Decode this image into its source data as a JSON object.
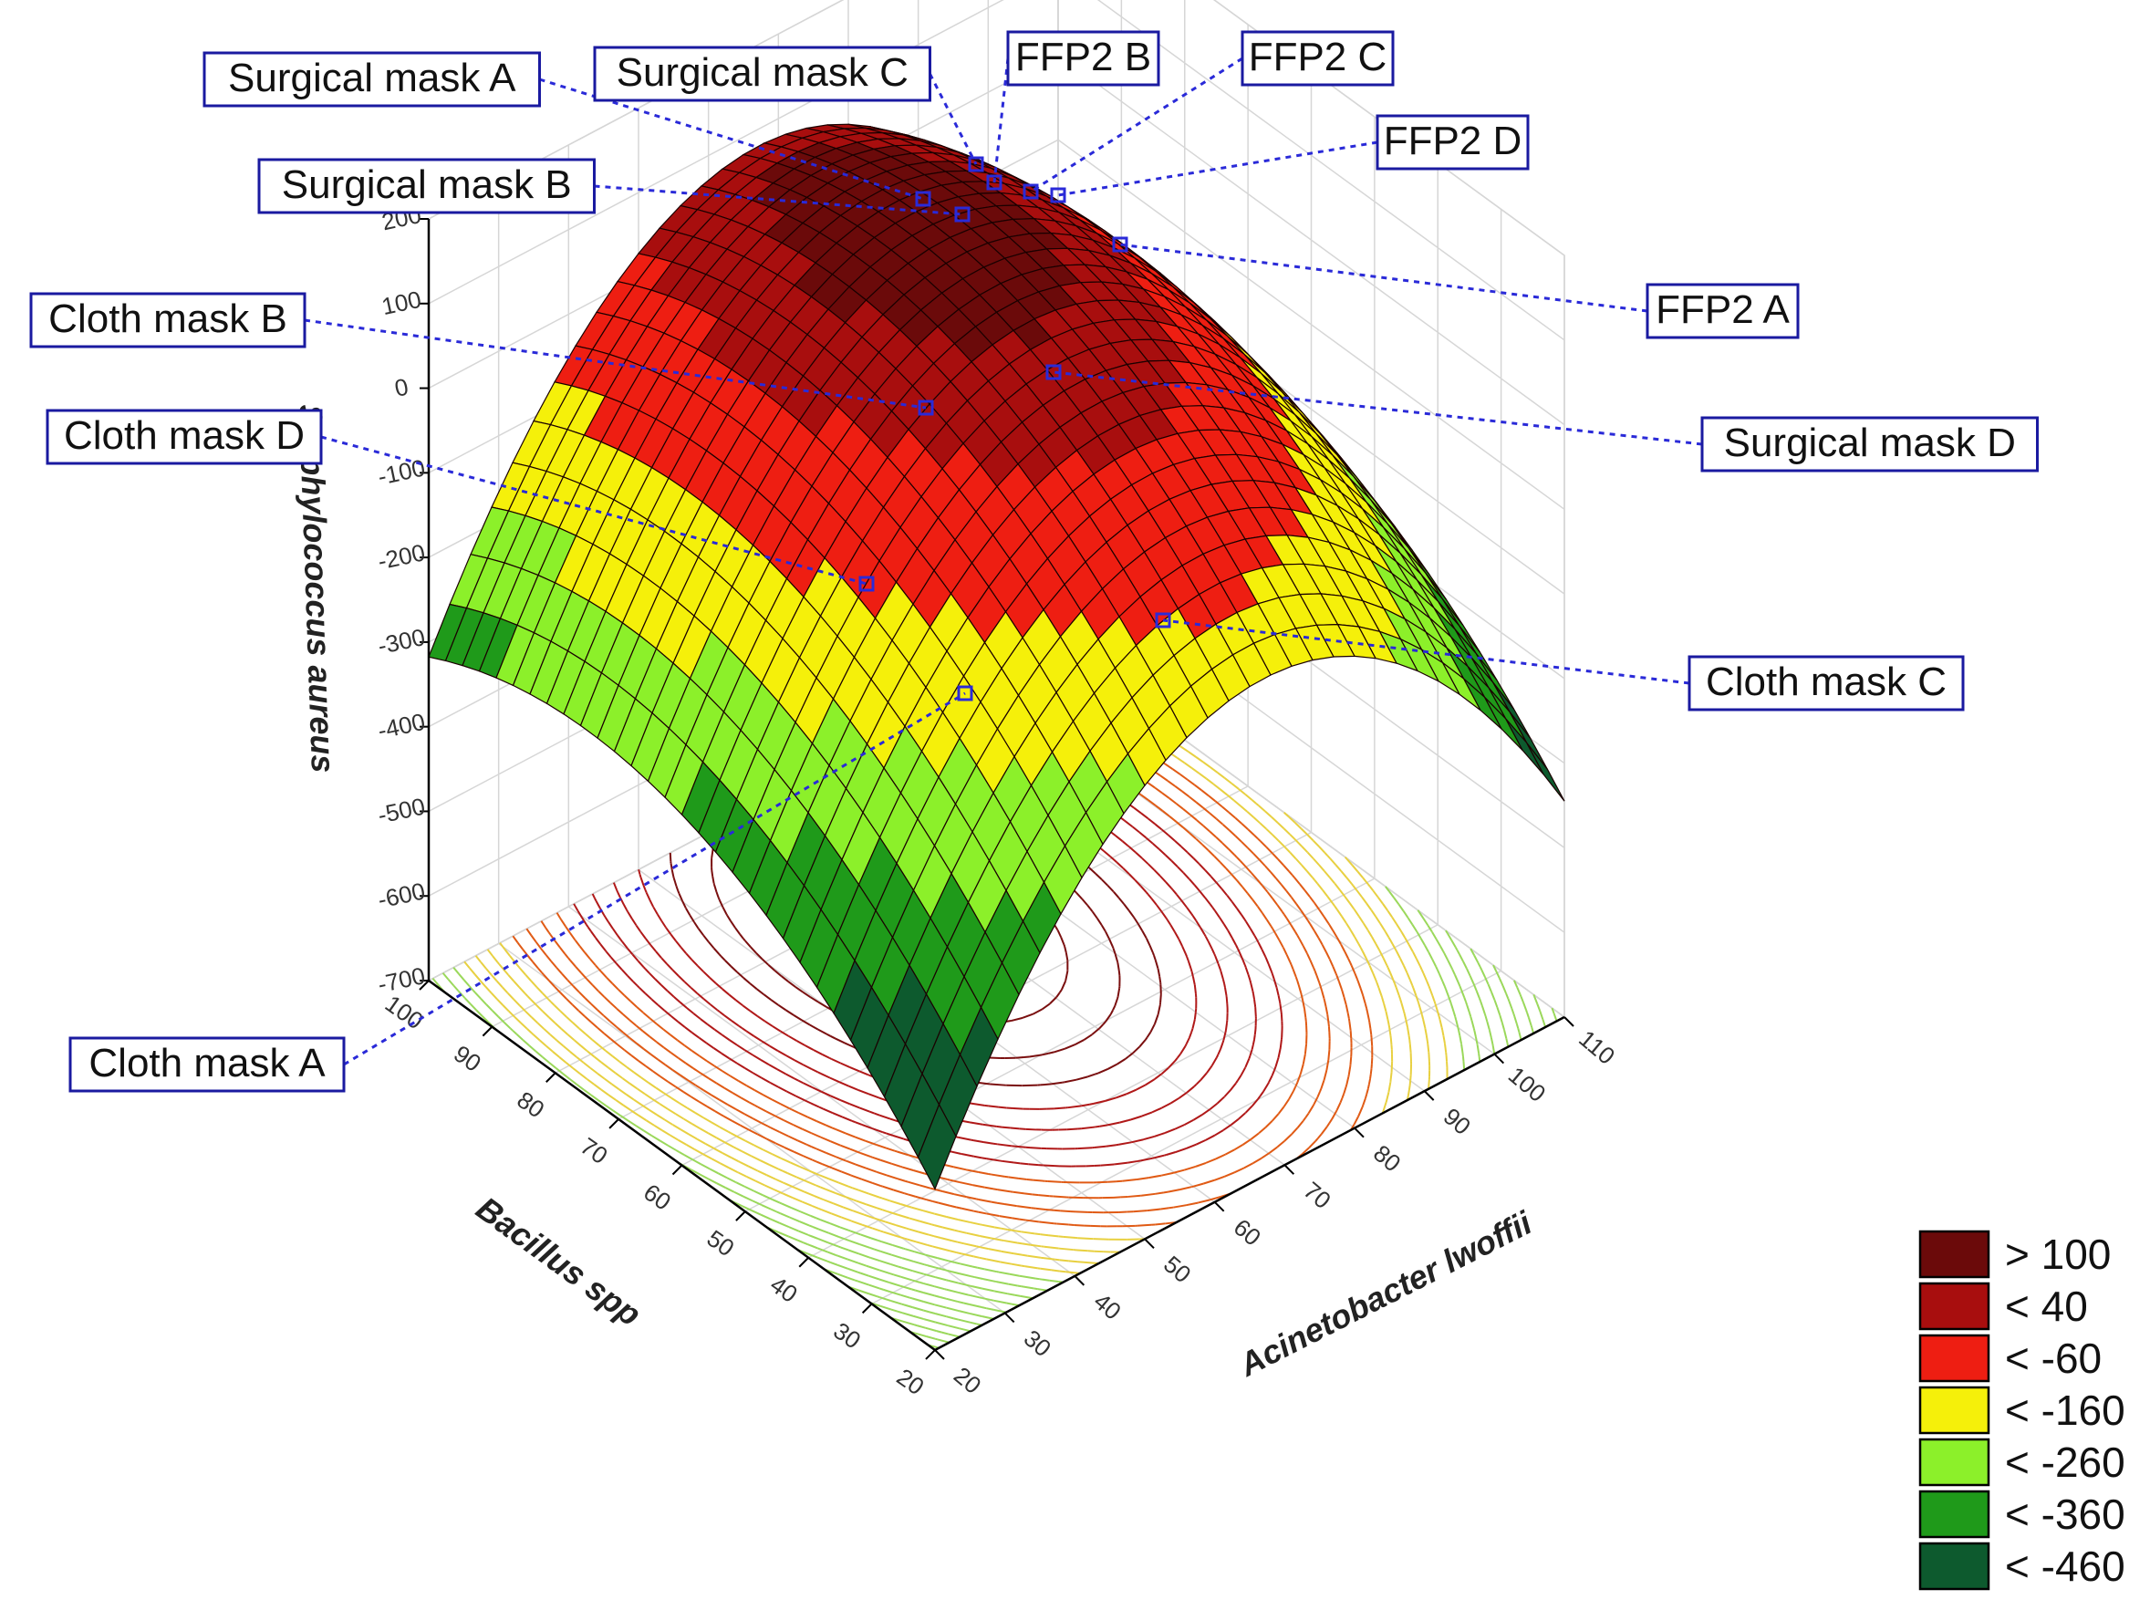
{
  "chart_data": {
    "type": "surface3d",
    "x_axis": {
      "label": "Acinetobacter lwoffii",
      "ticks": [
        20,
        30,
        40,
        50,
        60,
        70,
        80,
        90,
        100,
        110
      ],
      "range": [
        20,
        110
      ]
    },
    "y_axis": {
      "label": "Bacillus spp",
      "ticks": [
        20,
        30,
        40,
        50,
        60,
        70,
        80,
        90,
        100
      ],
      "range": [
        20,
        100
      ]
    },
    "z_axis": {
      "label": "Staphylococcus aureus",
      "ticks": [
        200,
        100,
        0,
        -100,
        -200,
        -300,
        -400,
        -500,
        -600,
        -700
      ],
      "range": [
        -700,
        200
      ]
    },
    "legend": {
      "placement": "bottom-right",
      "entries": [
        {
          "label": "> 100",
          "color": "#6b0a0a"
        },
        {
          "label": "< 40",
          "color": "#a80e0e"
        },
        {
          "label": "< -60",
          "color": "#ee1e12"
        },
        {
          "label": "< -160",
          "color": "#f5f00a"
        },
        {
          "label": "< -260",
          "color": "#8cf02a"
        },
        {
          "label": "< -360",
          "color": "#1f9a1a"
        },
        {
          "label": "< -460",
          "color": "#0d5a2e"
        }
      ]
    },
    "annotations": [
      {
        "label": "Surgical mask A"
      },
      {
        "label": "Surgical mask C"
      },
      {
        "label": "FFP2 B"
      },
      {
        "label": "FFP2 C"
      },
      {
        "label": "FFP2 D"
      },
      {
        "label": "Surgical mask B"
      },
      {
        "label": "FFP2 A"
      },
      {
        "label": "Cloth mask B"
      },
      {
        "label": "Surgical mask D"
      },
      {
        "label": "Cloth mask D"
      },
      {
        "label": "Cloth mask C"
      },
      {
        "label": "Cloth mask A"
      }
    ],
    "grid": true,
    "contour_projection": true
  }
}
